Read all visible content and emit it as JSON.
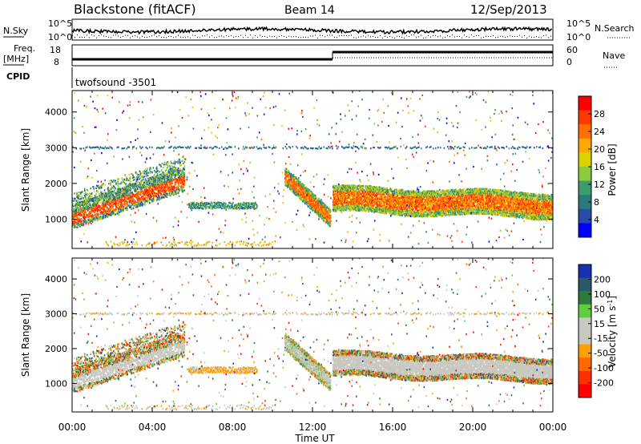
{
  "header": {
    "station": "Blackstone (fitACF)",
    "beam": "Beam 14",
    "date": "12/Sep/2013"
  },
  "top_panels": {
    "nsky_label": "N.Sky",
    "nsearch_label": "N.Search",
    "nsky_ticks": [
      "10^5",
      "10^0"
    ],
    "nsearch_ticks": [
      "10^5",
      "10^0"
    ],
    "freq_label": "Freq.",
    "freq_unit": "[MHz]",
    "freq_ticks": [
      "18",
      "8"
    ],
    "nave_label": "Nave",
    "nave_ticks": [
      "60",
      "0"
    ],
    "cpid_label": "CPID",
    "cpid_text": "twofsound  -3501"
  },
  "power_colorbar": {
    "label": "Power [dB]",
    "ticks": [
      "28",
      "24",
      "20",
      "16",
      "12",
      "8",
      "4"
    ],
    "colors": [
      "#ff0000",
      "#ff3a00",
      "#ff7000",
      "#ffa800",
      "#dcd200",
      "#8ccc3c",
      "#3c9c70",
      "#2a7a7a",
      "#2a4aa8",
      "#0000ff"
    ]
  },
  "velocity_colorbar": {
    "label": "Velocity [m s⁻¹]",
    "ticks": [
      "200",
      "100",
      "50",
      "15",
      "-15",
      "-50",
      "-100",
      "-200"
    ],
    "colors": [
      "#1830b0",
      "#2a5a6a",
      "#2e7a3a",
      "#60cc40",
      "#c8c8c0",
      "#c8c8c0",
      "#ffa000",
      "#ff6a00",
      "#ff3000",
      "#ff0000"
    ]
  },
  "chart_data": [
    {
      "type": "heatmap",
      "title": "Power",
      "ylabel": "Slant Range [km]",
      "xlabel": "Time UT",
      "x_ticks": [
        "00:00",
        "04:00",
        "08:00",
        "12:00",
        "16:00",
        "20:00",
        "00:00"
      ],
      "y_ticks": [
        1000,
        2000,
        3000,
        4000
      ],
      "xlim": [
        "00:00",
        "24:00"
      ],
      "ylim": [
        180,
        4600
      ],
      "clim": [
        0,
        32
      ],
      "units": "dB",
      "scatter_bands": [
        {
          "t_start": 0.0,
          "t_end": 2.0,
          "range_start": 1000,
          "range_end": 1250,
          "power": 26
        },
        {
          "t_start": 2.0,
          "t_end": 5.5,
          "range_start": 1250,
          "range_end": 2100,
          "power": 22
        },
        {
          "t_start": 6.0,
          "t_end": 9.0,
          "range_start": 1400,
          "range_end": 1450,
          "power": 9
        },
        {
          "t_start": 0.0,
          "t_end": 23.9,
          "range_start": 3000,
          "range_end": 3000,
          "power": 6
        },
        {
          "t_start": 10.7,
          "t_end": 12.8,
          "range_start": 2200,
          "range_end": 1100,
          "power": 24
        },
        {
          "t_start": 13.0,
          "t_end": 24.0,
          "range_start": 1200,
          "range_end": 1800,
          "power": 18
        }
      ]
    },
    {
      "type": "heatmap",
      "title": "Velocity",
      "ylabel": "Slant Range [km]",
      "xlabel": "Time UT",
      "x_ticks": [
        "00:00",
        "04:00",
        "08:00",
        "12:00",
        "16:00",
        "20:00",
        "00:00"
      ],
      "y_ticks": [
        1000,
        2000,
        3000,
        4000
      ],
      "xlim": [
        "00:00",
        "24:00"
      ],
      "ylim": [
        180,
        4600
      ],
      "clim": [
        -250,
        250
      ],
      "units": "m s-1",
      "scatter_bands": [
        {
          "t_start": 0.0,
          "t_end": 5.5,
          "range_start": 1000,
          "range_end": 2100,
          "velocity": -5
        },
        {
          "t_start": 6.0,
          "t_end": 9.0,
          "range_start": 1400,
          "range_end": 1450,
          "velocity": -60
        },
        {
          "t_start": 10.7,
          "t_end": 12.8,
          "range_start": 2200,
          "range_end": 1100,
          "velocity": 20
        },
        {
          "t_start": 13.0,
          "t_end": 24.0,
          "range_start": 1200,
          "range_end": 1800,
          "velocity": -5
        },
        {
          "t_start": 0.0,
          "t_end": 23.9,
          "range_start": 3000,
          "range_end": 3000,
          "velocity": -40
        }
      ]
    }
  ],
  "x_axis_title": "Time UT"
}
